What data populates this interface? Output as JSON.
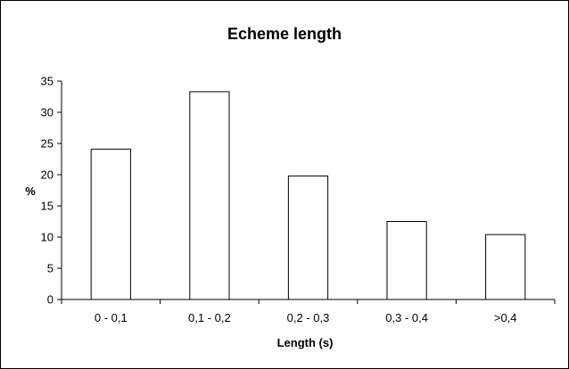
{
  "chart_data": {
    "type": "bar",
    "title": "Echeme length",
    "xlabel": "Length (s)",
    "ylabel": "%",
    "categories": [
      "0 - 0,1",
      "0,1 - 0,2",
      "0,2 - 0,3",
      "0,3 - 0,4",
      ">0,4"
    ],
    "values": [
      24.1,
      33.3,
      19.8,
      12.5,
      10.4
    ],
    "ylim": [
      0,
      35
    ],
    "yticks": [
      0,
      5,
      10,
      15,
      20,
      25,
      30,
      35
    ],
    "grid": false,
    "legend": "none",
    "colors": {
      "bar_fill": "#ffffff",
      "bar_stroke": "#000000",
      "axis": "#000000"
    }
  }
}
